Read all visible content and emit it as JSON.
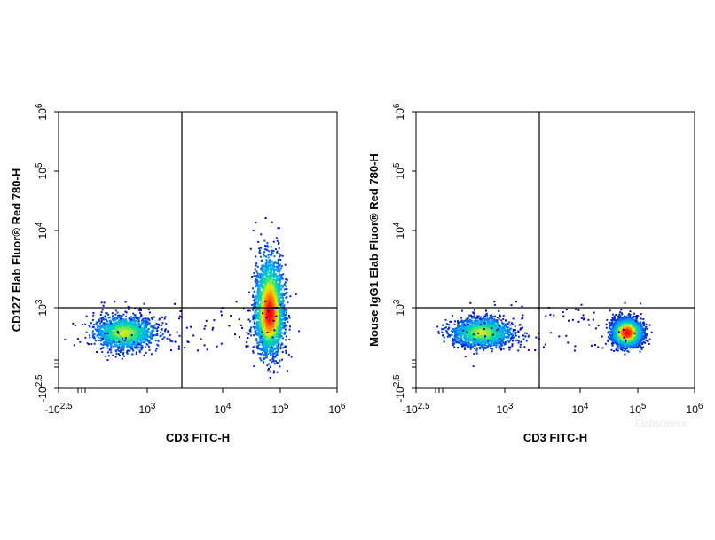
{
  "watermark": "Elabscience",
  "chart_data": [
    {
      "type": "scatter",
      "title": "",
      "xlabel": "CD3 FITC-H",
      "ylabel": "CD127 Elab Fluor® Red 780-H",
      "x_scale": "biexponential",
      "y_scale": "biexponential",
      "xlim": [
        "-10^2.5",
        "10^6"
      ],
      "ylim": [
        "-10^2.5",
        "10^6"
      ],
      "x_ticks": [
        {
          "base": "-10",
          "exp": "2.5"
        },
        {
          "base": "10",
          "exp": "3"
        },
        {
          "base": "10",
          "exp": "4"
        },
        {
          "base": "10",
          "exp": "5"
        },
        {
          "base": "10",
          "exp": "6"
        }
      ],
      "y_ticks": [
        {
          "base": "-10",
          "exp": "2.5"
        },
        {
          "base": "10",
          "exp": "3"
        },
        {
          "base": "10",
          "exp": "4"
        },
        {
          "base": "10",
          "exp": "5"
        },
        {
          "base": "10",
          "exp": "6"
        }
      ],
      "quadrant_gate": {
        "x": 3000,
        "y": 1000
      },
      "populations": [
        {
          "label": "CD3- population",
          "x_center_log": 2.6,
          "y_center_log": 2.55,
          "x_spread_log": 0.25,
          "y_spread_log": 0.15,
          "density": "medium"
        },
        {
          "label": "CD3+ population",
          "x_center_log": 4.8,
          "y_center_log": 2.9,
          "x_spread_log": 0.12,
          "y_spread_log": 0.35,
          "density": "high"
        }
      ],
      "color_scale": [
        "#0000c8",
        "#00a0ff",
        "#00e0a0",
        "#f0f000",
        "#ff8000",
        "#ff0000"
      ],
      "grid": false
    },
    {
      "type": "scatter",
      "title": "",
      "xlabel": "CD3 FITC-H",
      "ylabel": "Mouse IgG1 Elab Fluor® Red 780-H",
      "x_scale": "biexponential",
      "y_scale": "biexponential",
      "xlim": [
        "-10^2.5",
        "10^6"
      ],
      "ylim": [
        "-10^2.5",
        "10^6"
      ],
      "x_ticks": [
        {
          "base": "-10",
          "exp": "2.5"
        },
        {
          "base": "10",
          "exp": "3"
        },
        {
          "base": "10",
          "exp": "4"
        },
        {
          "base": "10",
          "exp": "5"
        },
        {
          "base": "10",
          "exp": "6"
        }
      ],
      "y_ticks": [
        {
          "base": "-10",
          "exp": "2.5"
        },
        {
          "base": "10",
          "exp": "3"
        },
        {
          "base": "10",
          "exp": "4"
        },
        {
          "base": "10",
          "exp": "5"
        },
        {
          "base": "10",
          "exp": "6"
        }
      ],
      "quadrant_gate": {
        "x": 3000,
        "y": 1000
      },
      "populations": [
        {
          "label": "CD3- population",
          "x_center_log": 2.6,
          "y_center_log": 2.55,
          "x_spread_log": 0.25,
          "y_spread_log": 0.13,
          "density": "medium"
        },
        {
          "label": "CD3+ population",
          "x_center_log": 4.8,
          "y_center_log": 2.55,
          "x_spread_log": 0.12,
          "y_spread_log": 0.12,
          "density": "high"
        }
      ],
      "color_scale": [
        "#0000c8",
        "#00a0ff",
        "#00e0a0",
        "#f0f000",
        "#ff8000",
        "#ff0000"
      ],
      "grid": false
    }
  ]
}
